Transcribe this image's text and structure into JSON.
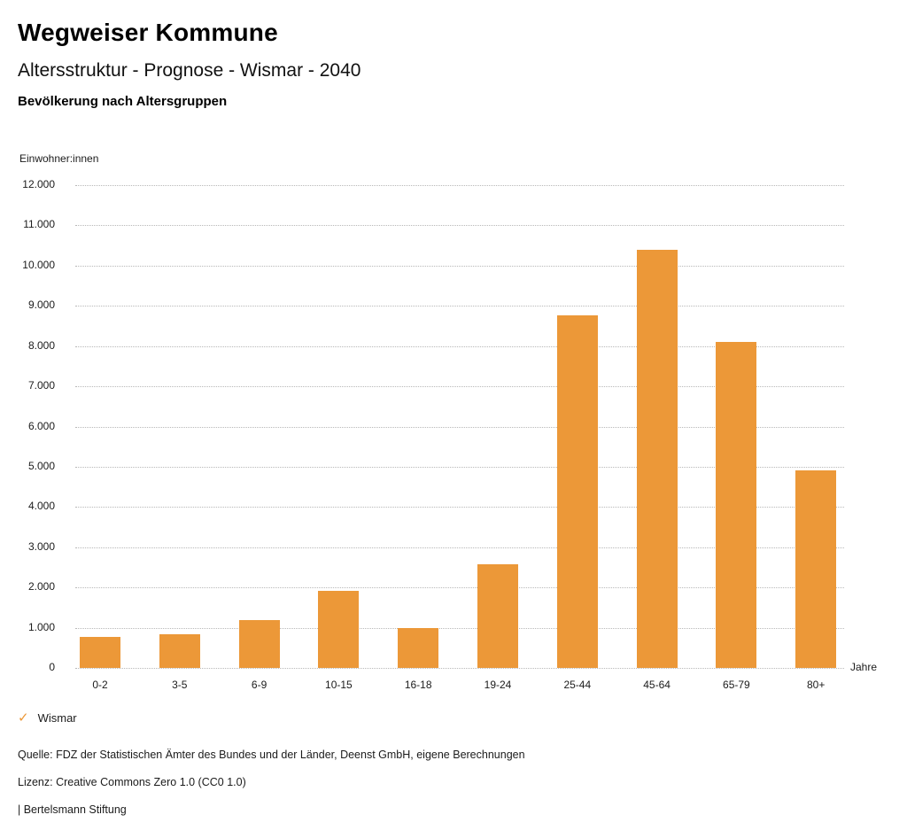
{
  "header": {
    "title": "Wegweiser Kommune",
    "subtitle": "Altersstruktur - Prognose - Wismar - 2040",
    "chart_heading": "Bevölkerung nach Altersgruppen"
  },
  "chart_data": {
    "type": "bar",
    "title": "Bevölkerung nach Altersgruppen",
    "unit_label": "Einwohner:innen",
    "xlabel": "Jahre",
    "ylabel": "Einwohner:innen",
    "categories": [
      "0-2",
      "3-5",
      "6-9",
      "10-15",
      "16-18",
      "19-24",
      "25-44",
      "45-64",
      "65-79",
      "80+"
    ],
    "values": [
      780,
      830,
      1190,
      1920,
      990,
      2570,
      8760,
      10400,
      8100,
      4910
    ],
    "series_name": "Wismar",
    "ylim": [
      0,
      12000
    ],
    "ytick_step": 1000,
    "ytick_format": "german-thousands-dot",
    "grid": "horizontal-dotted",
    "legend_position": "bottom-left",
    "bar_color": "#EC9838"
  },
  "legend": {
    "check_icon": "✓",
    "label": "Wismar",
    "check_color": "#EC9838"
  },
  "footer": {
    "source": "Quelle: FDZ der Statistischen Ämter des Bundes und der Länder, Deenst GmbH, eigene Berechnungen",
    "license": "Lizenz: Creative Commons Zero 1.0 (CC0 1.0)",
    "attribution": "| Bertelsmann Stiftung"
  },
  "colors": {
    "bar": "#EC9838",
    "grid": "#b8b8b8",
    "text": "#1b1b1b",
    "background": "#ffffff"
  }
}
